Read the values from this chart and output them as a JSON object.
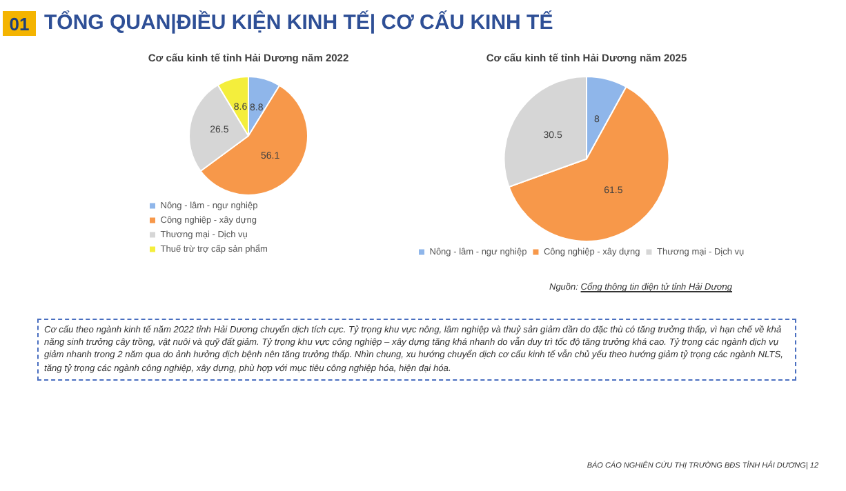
{
  "chart_data": [
    {
      "type": "pie",
      "title": "Cơ cấu kinh tế tỉnh Hải Dương năm 2022",
      "categories": [
        "Nông - lâm - ngư nghiệp",
        "Công nghiệp - xây dựng",
        "Thương mại - Dịch vụ",
        "Thuế trừ trợ cấp sản phẩm"
      ],
      "values": [
        8.8,
        56.1,
        26.5,
        8.6
      ],
      "colors": [
        "#8fb6ea",
        "#f7984a",
        "#d6d6d6",
        "#f4ee3c"
      ],
      "data_labels": true,
      "legend": "bottom",
      "annotations": [
        "01",
        "TỔNG QUAN|ĐIỀU KIỆN KINH TẾ| CƠ CẤU KINH TẾ",
        "Cơ cấu theo ngành kinh tế năm 2022 tỉnh Hải Dương chuyển dịch tích cực. Tỷ trọng khu vực nông, lâm nghiệp và thuỷ sản giảm dần do đặc thù có tăng trưởng thấp, vì hạn chế về khả năng sinh trưởng cây trồng, vật nuôi và quỹ đất giảm. Tỷ trọng khu vực công nghiệp – xây dựng tăng khá nhanh do vẫn duy trì tốc độ tăng trưởng khá cao. Tỷ trọng các ngành dịch vụ giảm nhanh trong 2 năm qua do ảnh hưởng dịch bệnh nên tăng trưởng thấp. Nhìn chung, xu hướng chuyển dịch cơ cấu kinh tế vẫn chủ yếu theo hướng giảm tỷ trọng các ngành NLTS, tăng tỷ trọng các ngành công nghiệp, xây dựng, phù hợp với mục tiêu công nghiệp hóa, hiện đại hóa.",
        "BÁO CÁO NGHIÊN CỨU THỊ TRƯỜNG BĐS TỈNH HẢI DƯƠNG| 12"
      ]
    },
    {
      "type": "pie",
      "title": "Cơ cấu kinh tế tỉnh Hải Dương năm 2025",
      "categories": [
        "Nông - lâm - ngư nghiệp",
        "Công nghiệp - xây dựng",
        "Thương mại - Dịch vụ"
      ],
      "values": [
        8,
        61.5,
        30.5
      ],
      "colors": [
        "#8fb6ea",
        "#f7984a",
        "#d6d6d6"
      ],
      "data_labels": true,
      "legend": "bottom",
      "annotations": [
        "Nguồn: Cổng thông tin điện tử tỉnh Hải Dương"
      ]
    }
  ]
}
